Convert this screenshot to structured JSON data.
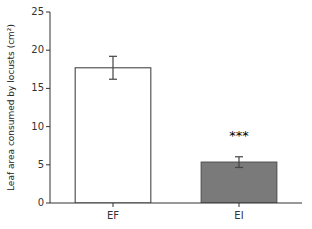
{
  "chart_data": {
    "type": "bar",
    "categories": [
      "EF",
      "EI"
    ],
    "values": [
      17.7,
      5.35
    ],
    "errors": [
      1.5,
      0.7
    ],
    "colors": [
      "#ffffff",
      "#7a7a7a"
    ],
    "ylabel": "Leaf area consumed by locusts (cm²)",
    "ylim": [
      0,
      25
    ],
    "yticks": [
      0,
      5,
      10,
      15,
      20,
      25
    ],
    "annotations": [
      {
        "text": "***",
        "x": "EI",
        "y": 8.2
      }
    ],
    "grid": false
  }
}
